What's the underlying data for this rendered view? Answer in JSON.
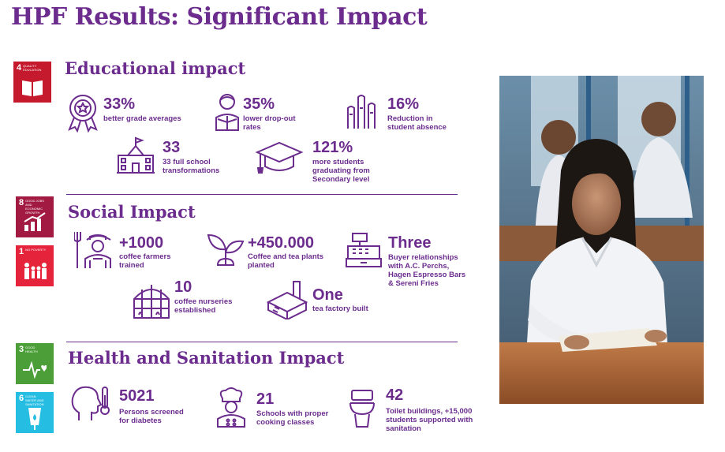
{
  "title": "HPF Results: Significant Impact",
  "sections": {
    "education": {
      "heading": "Educational impact"
    },
    "social": {
      "heading": "Social Impact"
    },
    "health": {
      "heading": "Health and Sanitation Impact"
    }
  },
  "sdg": {
    "quality_education": {
      "number": "4",
      "label": "QUALITY EDUCATION",
      "color": "#c5192d"
    },
    "decent_work": {
      "number": "8",
      "label": "GOOD JOBS AND ECONOMIC GROWTH",
      "color": "#a21942"
    },
    "no_poverty": {
      "number": "1",
      "label": "NO POVERTY",
      "color": "#e5243b"
    },
    "good_health": {
      "number": "3",
      "label": "GOOD HEALTH",
      "color": "#4c9f38"
    },
    "clean_water": {
      "number": "6",
      "label": "CLEAN WATER AND SANITATION",
      "color": "#26bde2"
    }
  },
  "stats": {
    "grades": {
      "value": "33%",
      "label": "better grade averages",
      "icon": "award-ribbon-icon"
    },
    "dropout": {
      "value": "35%",
      "label": "lower drop-out rates",
      "icon": "student-reading-icon"
    },
    "absence": {
      "value": "16%",
      "label": "Reduction in student absence",
      "icon": "raised-hands-icon"
    },
    "schools": {
      "value": "33",
      "label": "33 full school transformations",
      "icon": "school-building-icon"
    },
    "graduating": {
      "value": "121%",
      "label": "more students graduating from Secondary level",
      "icon": "graduation-cap-icon"
    },
    "farmers": {
      "value": "+1000",
      "label": "coffee farmers trained",
      "icon": "farmer-icon"
    },
    "plants": {
      "value": "+450.000",
      "label": "Coffee and tea plants planted",
      "icon": "seedling-icon"
    },
    "buyers": {
      "value": "Three",
      "label": "Buyer relationships with A.C. Perchs, Hagen Espresso Bars & Sereni Fries",
      "icon": "cash-register-icon"
    },
    "nurseries": {
      "value": "10",
      "label": "coffee nurseries established",
      "icon": "greenhouse-icon"
    },
    "factory": {
      "value": "One",
      "label": "tea factory built",
      "icon": "factory-icon"
    },
    "diabetes": {
      "value": "5021",
      "label": "Persons screened for diabetes",
      "icon": "head-thermometer-icon"
    },
    "cooking": {
      "value": "21",
      "label": "Schools with proper cooking classes",
      "icon": "chef-icon"
    },
    "toilets": {
      "value": "42",
      "label": "Toilet buildings, +15,000 students supported with sanitation",
      "icon": "toilet-icon"
    }
  },
  "colors": {
    "accent": "#6b2c8e"
  }
}
